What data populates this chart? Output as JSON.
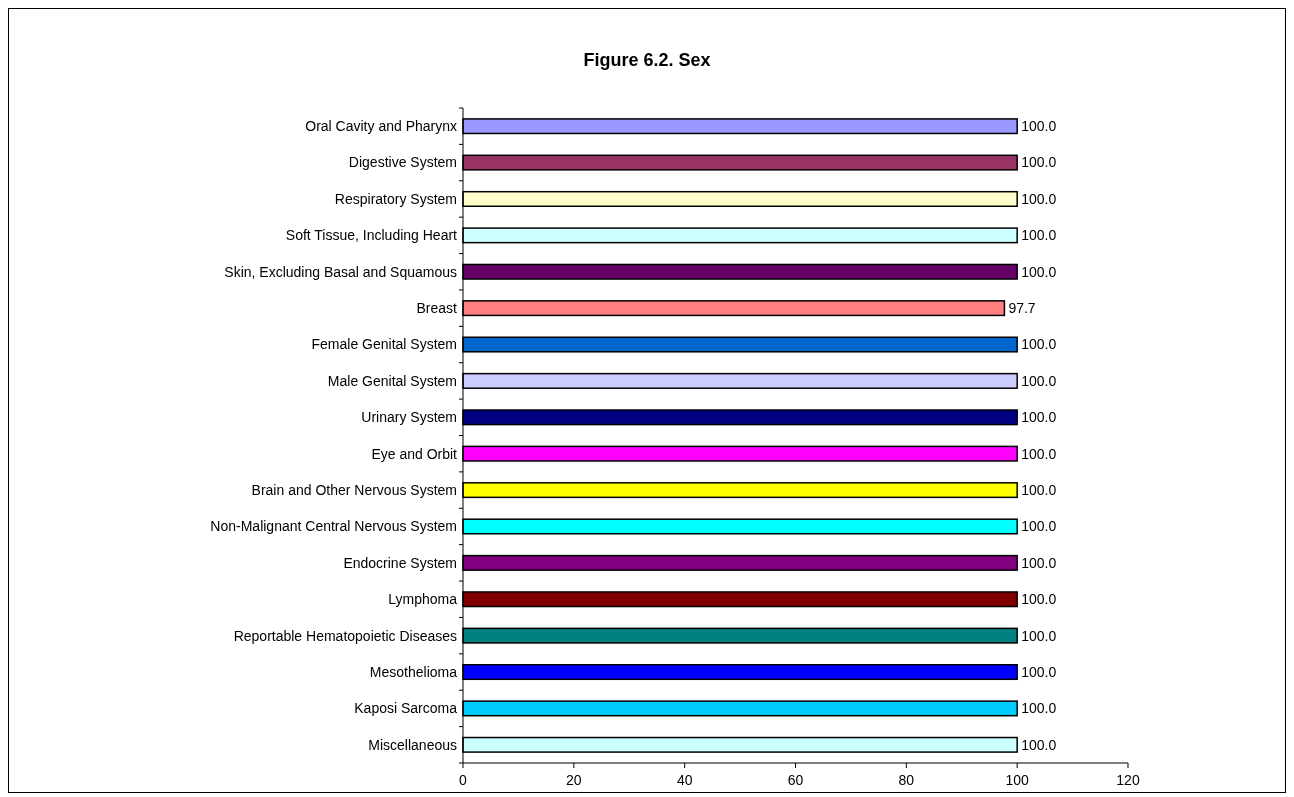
{
  "chart_data": {
    "type": "bar",
    "orientation": "horizontal",
    "title": "Figure 6.2.  Sex",
    "categories": [
      "Oral Cavity and Pharynx",
      "Digestive System",
      "Respiratory System",
      "Soft Tissue, Including Heart",
      "Skin, Excluding Basal and Squamous",
      "Breast",
      "Female Genital System",
      "Male Genital System",
      "Urinary System",
      "Eye and Orbit",
      "Brain and Other Nervous System",
      "Non-Malignant Central Nervous System",
      "Endocrine System",
      "Lymphoma",
      "Reportable Hematopoietic Diseases",
      "Mesothelioma",
      "Kaposi Sarcoma",
      "Miscellaneous"
    ],
    "values": [
      100,
      100,
      100,
      100,
      100,
      97.7,
      100,
      100,
      100,
      100,
      100,
      100,
      100,
      100,
      100,
      100,
      100,
      100
    ],
    "value_labels": [
      "100.0",
      "100.0",
      "100.0",
      "100.0",
      "100.0",
      "97.7",
      "100.0",
      "100.0",
      "100.0",
      "100.0",
      "100.0",
      "100.0",
      "100.0",
      "100.0",
      "100.0",
      "100.0",
      "100.0",
      "100.0"
    ],
    "colors": [
      "#9999ff",
      "#993366",
      "#ffffcc",
      "#ccffff",
      "#660066",
      "#ff8080",
      "#0066cc",
      "#ccccff",
      "#000080",
      "#ff00ff",
      "#ffff00",
      "#00ffff",
      "#800080",
      "#800000",
      "#008080",
      "#0000ff",
      "#00ccff",
      "#ccffff"
    ],
    "xlim": [
      0,
      120
    ],
    "xticks": [
      0,
      20,
      40,
      60,
      80,
      100,
      120
    ],
    "grid": false
  }
}
